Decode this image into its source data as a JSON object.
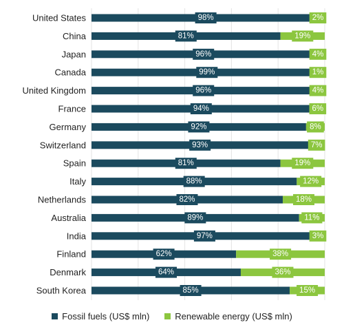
{
  "chart_data": {
    "type": "bar",
    "orientation": "horizontal",
    "stacked": true,
    "categories": [
      "United States",
      "China",
      "Japan",
      "Canada",
      "United Kingdom",
      "France",
      "Germany",
      "Switzerland",
      "Spain",
      "Italy",
      "Netherlands",
      "Australia",
      "India",
      "Finland",
      "Denmark",
      "South Korea"
    ],
    "series": [
      {
        "name": "Fossil fuels (US$ mln)",
        "color": "#1b4a5e",
        "values": [
          98,
          81,
          96,
          99,
          96,
          94,
          92,
          93,
          81,
          88,
          82,
          89,
          97,
          62,
          64,
          85
        ],
        "labels": [
          "98%",
          "81%",
          "96%",
          "99%",
          "96%",
          "94%",
          "92%",
          "93%",
          "81%",
          "88%",
          "82%",
          "89%",
          "97%",
          "62%",
          "64%",
          "85%"
        ]
      },
      {
        "name": "Renewable energy (US$ mln)",
        "color": "#8cc63f",
        "values": [
          2,
          19,
          4,
          1,
          4,
          6,
          8,
          7,
          19,
          12,
          18,
          11,
          3,
          38,
          36,
          15
        ],
        "labels": [
          "2%",
          "19%",
          "4%",
          "1%",
          "4%",
          "6%",
          "8%",
          "7%",
          "19%",
          "12%",
          "18%",
          "11%",
          "3%",
          "38%",
          "36%",
          "15%"
        ]
      }
    ],
    "xlim": [
      0,
      100
    ],
    "grid": true,
    "legend": "bottom"
  }
}
